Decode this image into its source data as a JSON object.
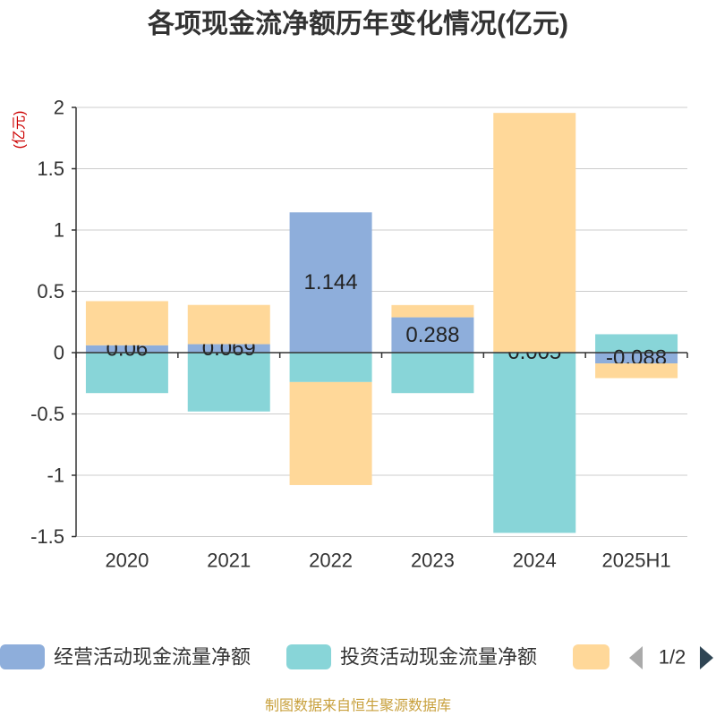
{
  "footer": "制图数据来自恒生聚源数据库",
  "legend": {
    "page": "1/2"
  },
  "chart_data": {
    "type": "bar",
    "stacked": true,
    "title": "各项现金流净额历年变化情况(亿元)",
    "xlabel": "",
    "ylabel": "(亿元)",
    "categories": [
      "2020",
      "2021",
      "2022",
      "2023",
      "2024",
      "2025H1"
    ],
    "ylim": [
      -1.5,
      2
    ],
    "yticks": [
      2,
      1.5,
      1,
      0.5,
      0,
      -0.5,
      -1,
      -1.5
    ],
    "grid": true,
    "legend_position": "bottom",
    "series": [
      {
        "name": "经营活动现金流量净额",
        "color": "#8eaedb",
        "values": [
          0.06,
          0.069,
          1.144,
          0.288,
          0.005,
          -0.088
        ],
        "show_labels": true
      },
      {
        "name": "投资活动现金流量净额",
        "color": "#88d5d8",
        "values": [
          -0.33,
          -0.48,
          -0.24,
          -0.33,
          -1.47,
          0.15
        ]
      },
      {
        "name": "",
        "color": "#ffd899",
        "values": [
          0.36,
          0.32,
          -0.84,
          0.1,
          1.95,
          -0.12
        ]
      }
    ]
  }
}
